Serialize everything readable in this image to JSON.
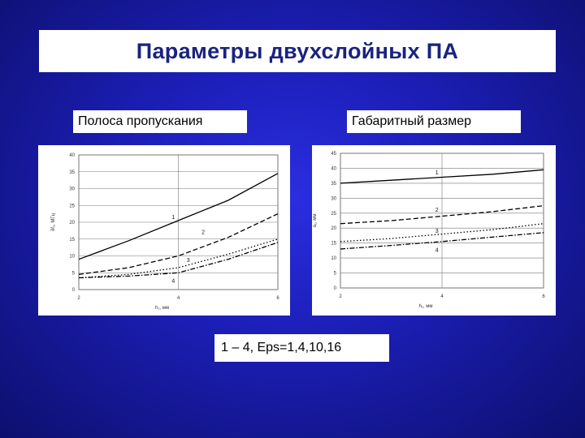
{
  "slide": {
    "title": "Параметры двухслойных ПА",
    "left_label": "Полоса пропускания",
    "right_label": "Габаритный размер",
    "caption": "1 – 4, Eps=1,4,10,16"
  },
  "colors": {
    "background": "#1c1fb8",
    "title_text": "#1a237e",
    "panel": "#ffffff",
    "line": "#000000"
  },
  "chart_data": [
    {
      "type": "line",
      "title": "",
      "xlabel": "h₁, мм",
      "ylabel": "δf₁, МГц",
      "xlim": [
        2,
        6
      ],
      "ylim": [
        0,
        40
      ],
      "xticks": [
        "2",
        "4",
        "6"
      ],
      "yticks": [
        "0",
        "5",
        "10",
        "15",
        "20",
        "25",
        "30",
        "35",
        "40"
      ],
      "grid": true,
      "x": [
        2,
        3,
        4,
        5,
        6
      ],
      "series": [
        {
          "name": "1",
          "style": "solid",
          "values": [
            9,
            14.5,
            20.5,
            26.5,
            34.5
          ]
        },
        {
          "name": "2",
          "style": "dashed",
          "values": [
            4.5,
            6.5,
            10,
            15.5,
            22.5
          ]
        },
        {
          "name": "3",
          "style": "dotted",
          "values": [
            3.5,
            4.5,
            6.5,
            10.5,
            15
          ]
        },
        {
          "name": "4",
          "style": "dashdot",
          "values": [
            3.5,
            4,
            5,
            9,
            14
          ]
        }
      ],
      "series_label_positions": [
        {
          "name": "1",
          "x": 3.9,
          "y": 21
        },
        {
          "name": "2",
          "x": 4.5,
          "y": 16.5
        },
        {
          "name": "3",
          "x": 4.2,
          "y": 8.2
        },
        {
          "name": "4",
          "x": 3.9,
          "y": 2
        }
      ]
    },
    {
      "type": "line",
      "title": "",
      "xlabel": "h₁, мм",
      "ylabel": "a₁, мм",
      "xlim": [
        2,
        6
      ],
      "ylim": [
        0,
        45
      ],
      "xticks": [
        "2",
        "4",
        "6"
      ],
      "yticks": [
        "0",
        "5",
        "10",
        "15",
        "20",
        "25",
        "30",
        "35",
        "40",
        "45"
      ],
      "grid": true,
      "x": [
        2,
        3,
        4,
        5,
        6
      ],
      "series": [
        {
          "name": "1",
          "style": "solid",
          "values": [
            35,
            36,
            37,
            38,
            39.5
          ]
        },
        {
          "name": "2",
          "style": "dashed",
          "values": [
            21.5,
            22.5,
            24,
            25.5,
            27.5
          ]
        },
        {
          "name": "3",
          "style": "dotted",
          "values": [
            15.5,
            16.5,
            18,
            19.5,
            21.5
          ]
        },
        {
          "name": "4",
          "style": "dashdot",
          "values": [
            13,
            14.2,
            15.5,
            17,
            18.5
          ]
        }
      ],
      "series_label_positions": [
        {
          "name": "1",
          "x": 3.9,
          "y": 38
        },
        {
          "name": "2",
          "x": 3.9,
          "y": 25.5
        },
        {
          "name": "3",
          "x": 3.9,
          "y": 18.5
        },
        {
          "name": "4",
          "x": 3.9,
          "y": 12
        }
      ]
    }
  ]
}
